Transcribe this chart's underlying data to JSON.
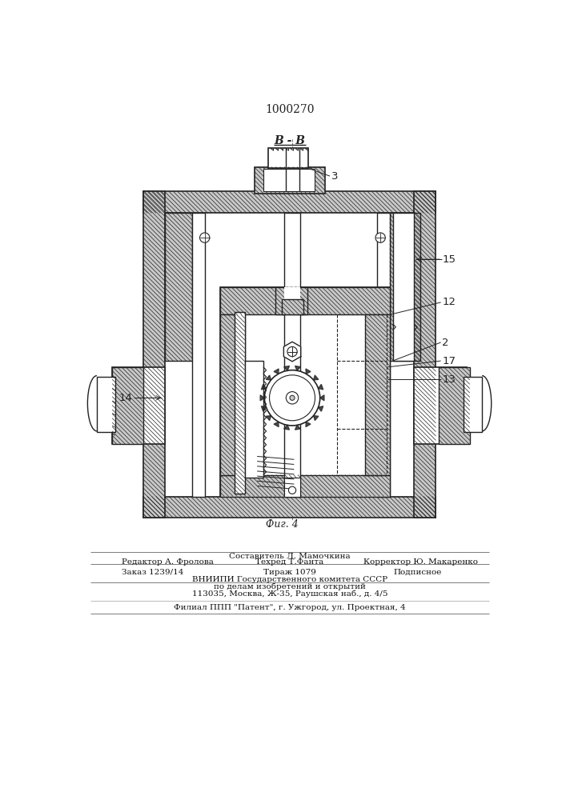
{
  "patent_number": "1000270",
  "fig_label": "Фиг. 4",
  "section_label": "В-В",
  "bg_color": "#ffffff",
  "line_color": "#222222",
  "hatch_fill": "#c8c8c8"
}
